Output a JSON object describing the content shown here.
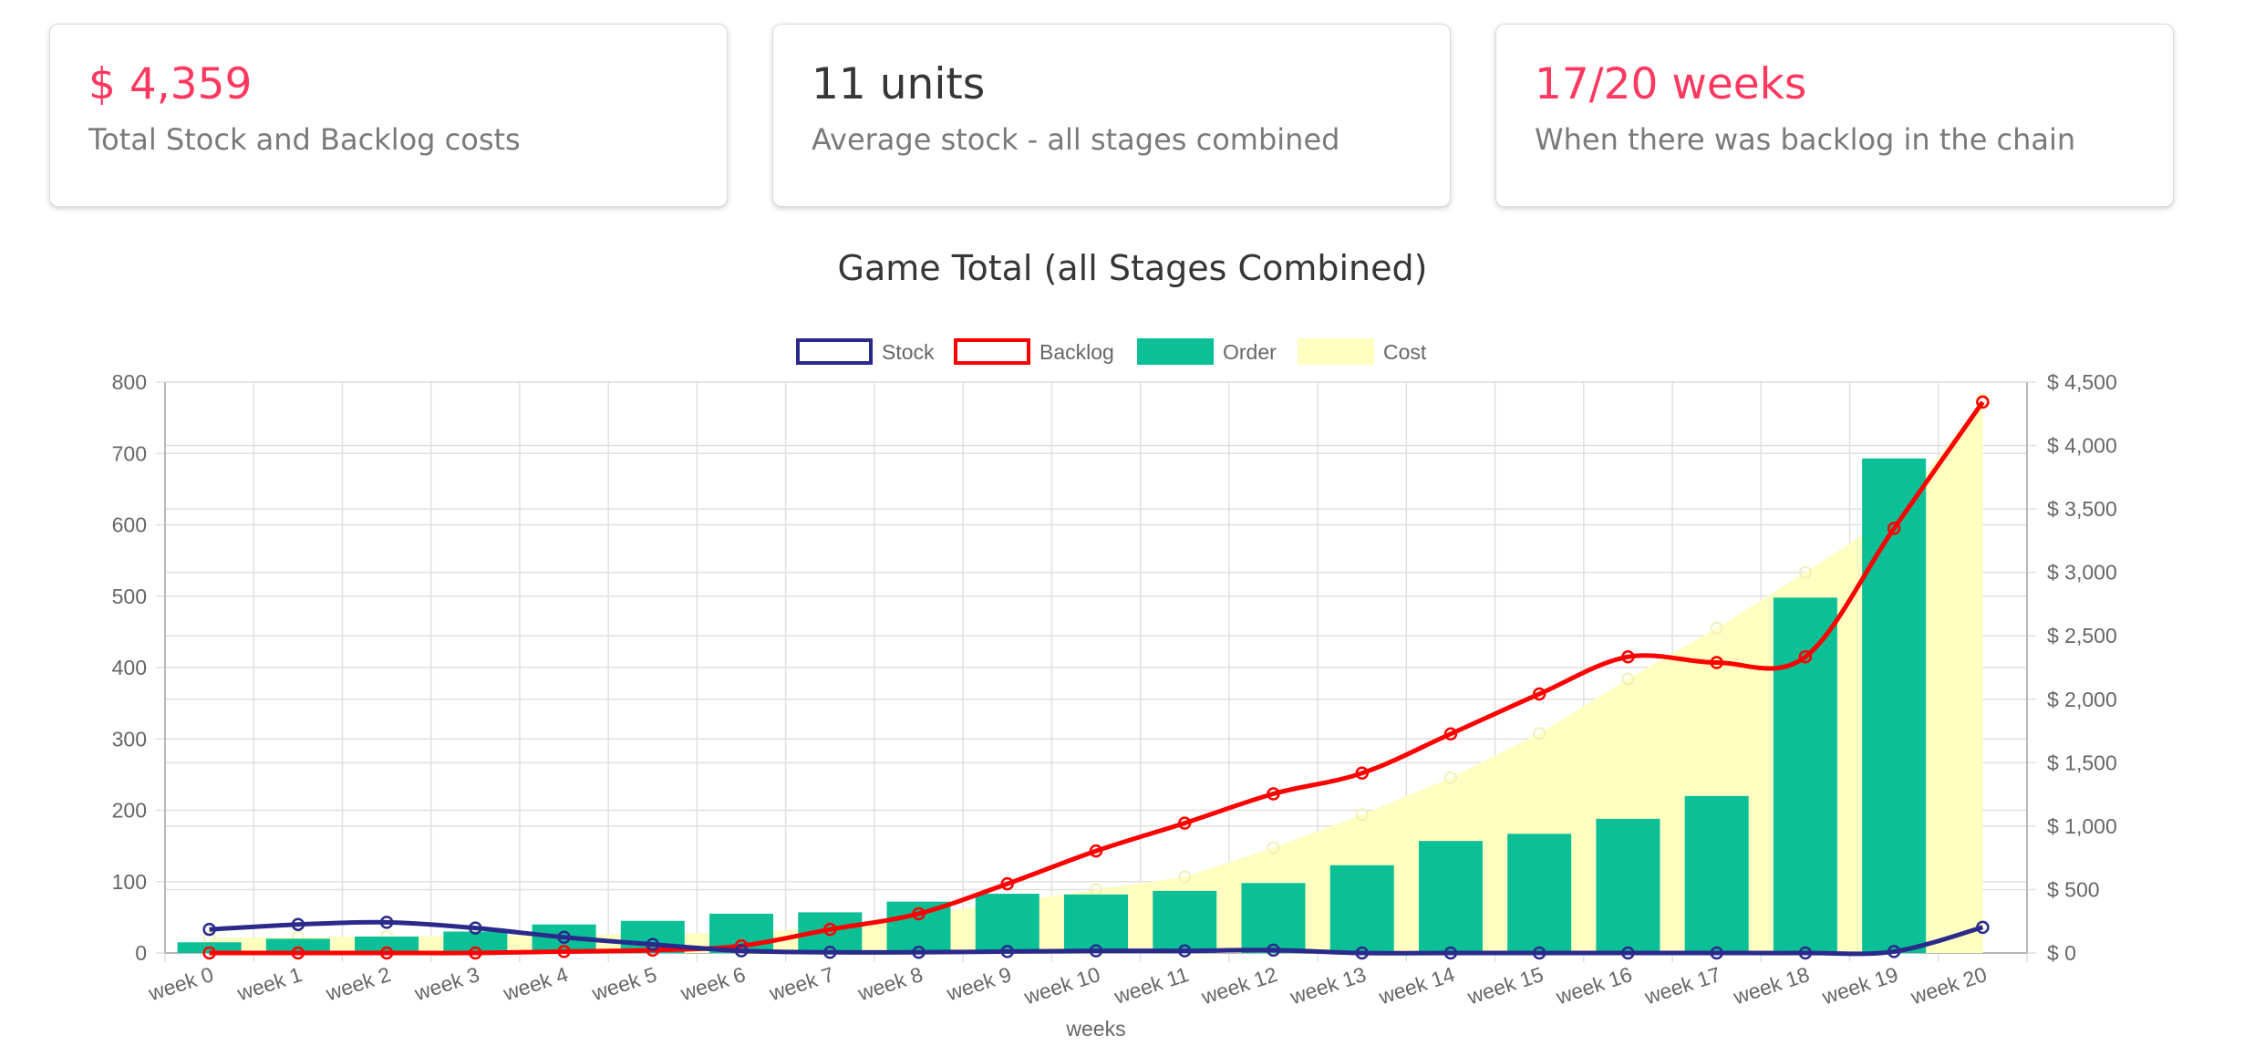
{
  "cards": [
    {
      "value": "$ 4,359",
      "label": "Total Stock and Backlog costs"
    },
    {
      "value": "11 units",
      "label": "Average stock - all stages combined"
    },
    {
      "value": "17/20 weeks",
      "label": "When there was backlog in the chain"
    }
  ],
  "chart_data": {
    "type": "bar",
    "title": "Game Total (all Stages Combined)",
    "xlabel": "weeks",
    "categories": [
      "week 0",
      "week 1",
      "week 2",
      "week 3",
      "week 4",
      "week 5",
      "week 6",
      "week 7",
      "week 8",
      "week 9",
      "week 10",
      "week 11",
      "week 12",
      "week 13",
      "week 14",
      "week 15",
      "week 16",
      "week 17",
      "week 18",
      "week 19",
      "week 20"
    ],
    "y_left": {
      "min": 0,
      "max": 800,
      "ticks": [
        0,
        100,
        200,
        300,
        400,
        500,
        600,
        700,
        800
      ]
    },
    "y_right": {
      "min": 0,
      "max": 4500,
      "ticks": [
        "$ 0",
        "$ 500",
        "$ 1,000",
        "$ 1,500",
        "$ 2,000",
        "$ 2,500",
        "$ 3,000",
        "$ 3,500",
        "$ 4,000",
        "$ 4,500"
      ]
    },
    "legend_position": "top",
    "grid": true,
    "series": [
      {
        "name": "Stock",
        "type": "line",
        "axis": "left",
        "color": "#2a2a8c",
        "values": [
          33,
          40,
          43,
          35,
          22,
          12,
          3,
          1,
          1,
          2,
          3,
          3,
          4,
          0,
          0,
          0,
          0,
          0,
          0,
          2,
          36
        ]
      },
      {
        "name": "Backlog",
        "type": "line",
        "axis": "left",
        "color": "#ff0000",
        "values": [
          0,
          0,
          0,
          0,
          2,
          4,
          10,
          33,
          55,
          97,
          143,
          182,
          223,
          252,
          307,
          363,
          415,
          407,
          415,
          595,
          772
        ]
      },
      {
        "name": "Order",
        "type": "bar",
        "axis": "left",
        "color": "#0bbf96",
        "values": [
          15,
          20,
          23,
          30,
          40,
          45,
          55,
          57,
          72,
          83,
          82,
          87,
          98,
          123,
          157,
          167,
          188,
          220,
          498,
          693,
          0
        ]
      },
      {
        "name": "Cost",
        "type": "area",
        "axis": "right",
        "color": "#ffffc2",
        "values": [
          120,
          125,
          130,
          135,
          140,
          150,
          160,
          200,
          300,
          400,
          500,
          600,
          830,
          1090,
          1380,
          1730,
          2160,
          2560,
          3000,
          3460,
          4360
        ]
      }
    ]
  }
}
